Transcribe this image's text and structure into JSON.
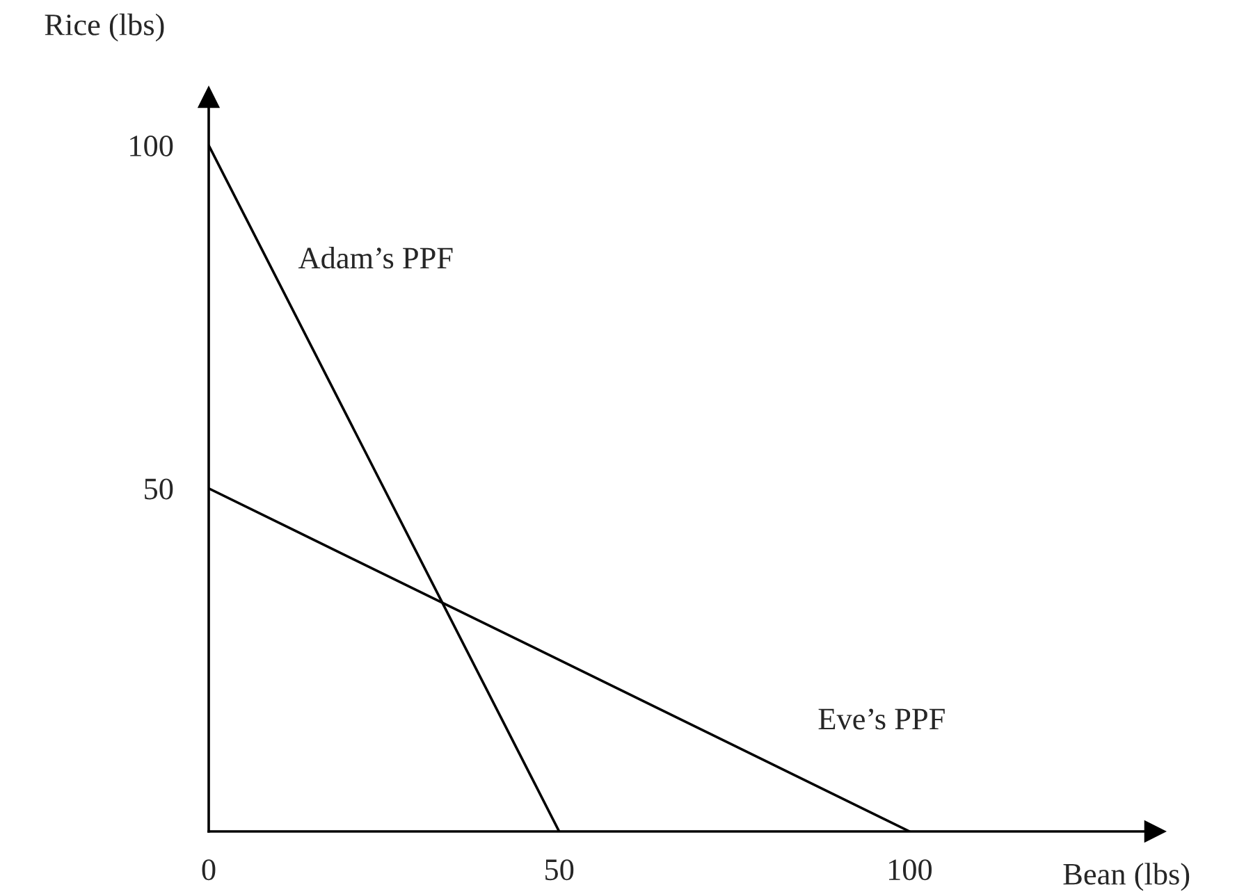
{
  "chart_data": {
    "type": "line",
    "xlabel": "Bean (lbs)",
    "ylabel": "Rice (lbs)",
    "xlim": [
      0,
      135
    ],
    "ylim": [
      0,
      107
    ],
    "xticks": [
      0,
      50,
      100
    ],
    "yticks": [
      50,
      100
    ],
    "grid": false,
    "legend": false,
    "series": [
      {
        "name": "Adam’s PPF",
        "color": "#000000",
        "x": [
          0,
          50
        ],
        "values": [
          100,
          0
        ]
      },
      {
        "name": "Eve’s PPF",
        "color": "#000000",
        "x": [
          0,
          100
        ],
        "values": [
          50,
          0
        ]
      }
    ]
  }
}
